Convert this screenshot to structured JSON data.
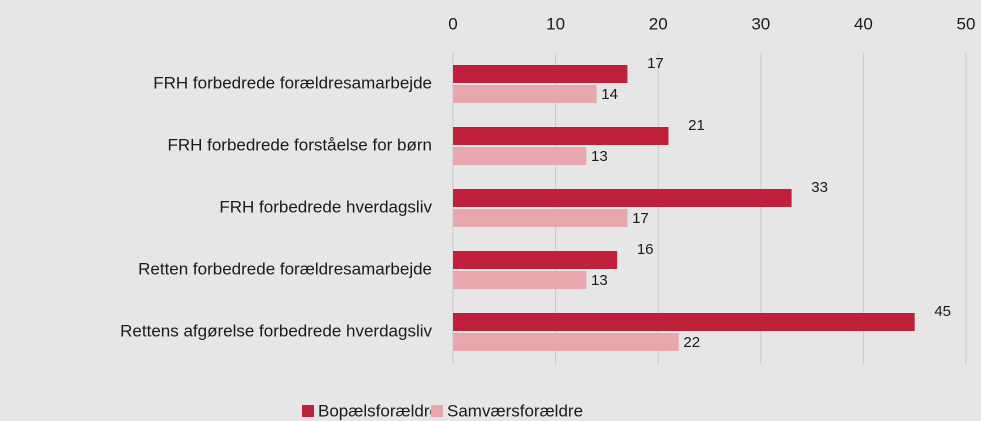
{
  "chart_data": {
    "type": "bar",
    "orientation": "horizontal",
    "categories": [
      "FRH  forbedrede forældresamarbejde",
      "FRH forbedrede forståelse for børn",
      "FRH forbedrede hverdagsliv",
      "Retten forbedrede forældresamarbejde",
      "Rettens afgørelse forbedrede hverdagsliv"
    ],
    "series": [
      {
        "name": "Bopælsforældre",
        "color": "#c0213a",
        "values": [
          17,
          21,
          33,
          16,
          45
        ]
      },
      {
        "name": "Samværsforældre",
        "color": "#e8a6ad",
        "values": [
          14,
          13,
          17,
          13,
          22
        ]
      }
    ],
    "xlim": [
      0,
      50
    ],
    "xticks": [
      0,
      10,
      20,
      30,
      40,
      50
    ],
    "grid": true,
    "legend": "bottom"
  }
}
